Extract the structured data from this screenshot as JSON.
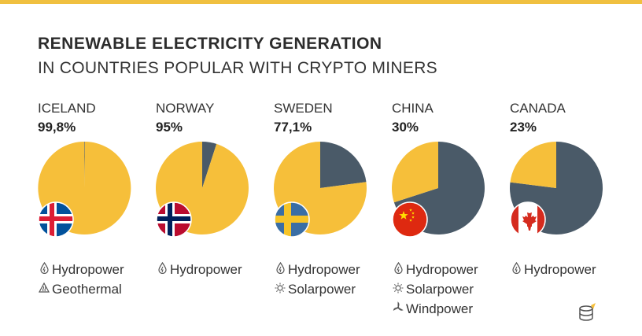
{
  "colors": {
    "renewable": "#f6bf3a",
    "non_renewable": "#4a5a68",
    "top_rule": "#f0c040"
  },
  "header": {
    "title": "RENEWABLE ELECTRICITY GENERATION",
    "subtitle": "IN COUNTRIES POPULAR WITH CRYPTO MINERS"
  },
  "chart_data": {
    "type": "pie",
    "title": "RENEWABLE ELECTRICITY GENERATION",
    "subtitle": "IN COUNTRIES POPULAR WITH CRYPTO MINERS",
    "categories": [
      "ICELAND",
      "NORWAY",
      "SWEDEN",
      "CHINA",
      "CANADA"
    ],
    "series": [
      {
        "values": [
          99.8,
          95,
          77.1,
          30,
          23
        ]
      }
    ],
    "panels": [
      {
        "country": "ICELAND",
        "percent_label": "99,8%",
        "value": 99.8,
        "flag": "iceland-flag",
        "sources": [
          {
            "icon": "droplet-icon",
            "label": "Hydropower"
          },
          {
            "icon": "geothermal-icon",
            "label": "Geothermal"
          }
        ]
      },
      {
        "country": "NORWAY",
        "percent_label": "95%",
        "value": 95,
        "flag": "norway-flag",
        "sources": [
          {
            "icon": "droplet-icon",
            "label": "Hydropower"
          }
        ]
      },
      {
        "country": "SWEDEN",
        "percent_label": "77,1%",
        "value": 77.1,
        "flag": "sweden-flag",
        "sources": [
          {
            "icon": "droplet-icon",
            "label": "Hydropower"
          },
          {
            "icon": "sun-icon",
            "label": "Solarpower"
          }
        ]
      },
      {
        "country": "CHINA",
        "percent_label": "30%",
        "value": 30,
        "flag": "china-flag",
        "sources": [
          {
            "icon": "droplet-icon",
            "label": "Hydropower"
          },
          {
            "icon": "sun-icon",
            "label": "Solarpower"
          },
          {
            "icon": "wind-icon",
            "label": "Windpower"
          }
        ]
      },
      {
        "country": "CANADA",
        "percent_label": "23%",
        "value": 23,
        "flag": "canada-flag",
        "sources": [
          {
            "icon": "droplet-icon",
            "label": "Hydropower"
          }
        ]
      }
    ]
  }
}
